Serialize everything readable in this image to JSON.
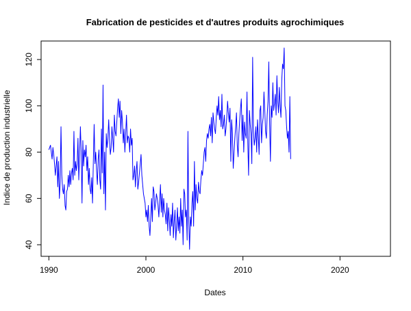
{
  "chart_data": {
    "type": "line",
    "title": "Fabrication de pesticides et d'autres produits agrochimiques",
    "xlabel": "Dates",
    "ylabel": "Indice de production industrielle",
    "xlim": [
      1989.2,
      2025.2
    ],
    "ylim": [
      35,
      128
    ],
    "x_ticks": [
      1990,
      2000,
      2010,
      2020
    ],
    "x_tick_labels": [
      "1990",
      "2000",
      "2010",
      "2020"
    ],
    "y_ticks": [
      40,
      60,
      80,
      100,
      120
    ],
    "y_tick_labels": [
      "40",
      "60",
      "80",
      "100",
      "120"
    ],
    "grid": false,
    "legend": "none",
    "colors": {
      "series": "#0000ff",
      "axes": "#000000",
      "background": "#ffffff"
    },
    "series": [
      {
        "x_start": 1990.0,
        "x_step": 0.08333,
        "values": [
          81,
          82,
          83,
          80,
          77,
          82,
          79,
          75,
          70,
          74,
          78,
          65,
          76,
          60,
          67,
          91,
          70,
          64,
          62,
          66,
          57,
          55,
          63,
          64,
          70,
          65,
          72,
          66,
          71,
          73,
          68,
          89,
          70,
          76,
          72,
          75,
          86,
          68,
          79,
          91,
          80,
          58,
          85,
          74,
          81,
          78,
          83,
          72,
          78,
          66,
          73,
          64,
          62,
          69,
          58,
          76,
          92,
          75,
          80,
          72,
          66,
          77,
          81,
          68,
          64,
          90,
          71,
          109,
          62,
          80,
          55,
          88,
          82,
          86,
          94,
          85,
          79,
          82,
          91,
          86,
          80,
          96,
          89,
          87,
          93,
          99,
          103,
          95,
          102,
          88,
          98,
          93,
          84,
          90,
          80,
          88,
          96,
          84,
          87,
          86,
          80,
          90,
          83,
          86,
          68,
          70,
          74,
          65,
          72,
          76,
          64,
          67,
          71,
          75,
          79,
          70,
          66,
          62,
          60,
          58,
          52,
          55,
          50,
          57,
          48,
          44,
          52,
          60,
          50,
          65,
          63,
          55,
          58,
          62,
          60,
          57,
          52,
          59,
          66,
          54,
          62,
          52,
          60,
          55,
          53,
          49,
          58,
          46,
          56,
          51,
          44,
          53,
          48,
          58,
          43,
          50,
          55,
          42,
          48,
          56,
          46,
          52,
          45,
          60,
          48,
          55,
          40,
          64,
          62,
          52,
          55,
          42,
          89,
          50,
          38,
          52,
          48,
          58,
          63,
          48,
          76,
          55,
          66,
          60,
          58,
          67,
          63,
          62,
          68,
          72,
          70,
          75,
          80,
          82,
          76,
          85,
          88,
          86,
          90,
          92,
          87,
          95,
          84,
          97,
          93,
          90,
          88,
          95,
          100,
          96,
          104,
          94,
          98,
          91,
          105,
          90,
          92,
          96,
          87,
          90,
          95,
          102,
          97,
          93,
          99,
          76,
          94,
          88,
          73,
          80,
          86,
          91,
          97,
          83,
          78,
          88,
          94,
          99,
          103,
          85,
          96,
          80,
          93,
          88,
          86,
          106,
          84,
          70,
          98,
          92,
          88,
          75,
          121,
          89,
          83,
          86,
          91,
          80,
          94,
          87,
          79,
          98,
          100,
          84,
          92,
          95,
          106,
          98,
          89,
          86,
          96,
          102,
          119,
          92,
          76,
          100,
          95,
          110,
          98,
          101,
          105,
          96,
          113,
          102,
          97,
          108,
          100,
          95,
          111,
          118,
          116,
          125,
          100,
          98,
          91,
          86,
          89,
          80,
          104,
          77
        ]
      }
    ]
  }
}
